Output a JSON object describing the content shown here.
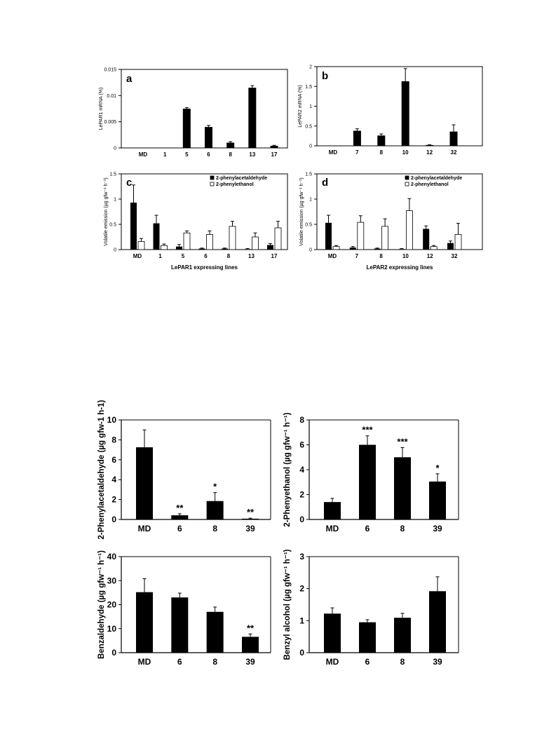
{
  "chart_data": [
    {
      "type": "bar",
      "panel_label": "a",
      "categories": [
        "MD",
        "1",
        "5",
        "6",
        "8",
        "13",
        "17"
      ],
      "series": [
        {
          "values": [
            0,
            0,
            0.0075,
            0.004,
            0.001,
            0.0115,
            0.0004
          ],
          "errors": [
            0,
            0,
            0.0002,
            0.0003,
            0.0002,
            0.0004,
            0.0001
          ],
          "color": "#000000"
        }
      ],
      "ylabel": "LePAR1 mRNA (%)",
      "ylim": [
        0,
        0.015
      ],
      "yticks": [
        "0",
        "0.005",
        "0.01",
        "0.015"
      ]
    },
    {
      "type": "bar",
      "panel_label": "b",
      "categories": [
        "MD",
        "7",
        "8",
        "10",
        "12",
        "32"
      ],
      "series": [
        {
          "values": [
            0,
            0.38,
            0.26,
            1.63,
            0.02,
            0.36
          ],
          "errors": [
            0,
            0.05,
            0.04,
            0.32,
            0.01,
            0.17
          ],
          "color": "#000000"
        }
      ],
      "ylabel": "LePAR2 mRNA (%)",
      "ylim": [
        0,
        2
      ],
      "yticks": [
        "0",
        "0.5",
        "1",
        "1.5",
        "2"
      ]
    },
    {
      "type": "bar",
      "panel_label": "c",
      "categories": [
        "MD",
        "1",
        "5",
        "6",
        "8",
        "13",
        "17"
      ],
      "series": [
        {
          "name": "2-phenylacetaldehyde",
          "values": [
            0.93,
            0.52,
            0.06,
            0.02,
            0.02,
            0.01,
            0.09
          ],
          "errors": [
            0.35,
            0.16,
            0.04,
            0.01,
            0.01,
            0.01,
            0.03
          ],
          "color": "#000000"
        },
        {
          "name": "2-phenylethanol",
          "values": [
            0.16,
            0.08,
            0.33,
            0.3,
            0.46,
            0.25,
            0.43
          ],
          "errors": [
            0.06,
            0.03,
            0.04,
            0.07,
            0.1,
            0.08,
            0.13
          ],
          "color": "#ffffff"
        }
      ],
      "xlabel": "LePAR1 expressing lines",
      "ylabel": "Volatile emission (µg gfw⁻¹ h⁻¹)",
      "ylim": [
        0,
        1.5
      ],
      "yticks": [
        "0",
        "0.5",
        "1",
        "1.5"
      ],
      "legend": "top-right"
    },
    {
      "type": "bar",
      "panel_label": "d",
      "categories": [
        "MD",
        "7",
        "8",
        "10",
        "12",
        "32"
      ],
      "series": [
        {
          "name": "2-phenylacetaldehyde",
          "values": [
            0.53,
            0.04,
            0.02,
            0.01,
            0.41,
            0.13
          ],
          "errors": [
            0.15,
            0.02,
            0.01,
            0.01,
            0.06,
            0.04
          ],
          "color": "#000000"
        },
        {
          "name": "2-phenylethanol",
          "values": [
            0.06,
            0.54,
            0.46,
            0.77,
            0.06,
            0.3
          ],
          "errors": [
            0.02,
            0.13,
            0.15,
            0.24,
            0.02,
            0.22
          ],
          "color": "#ffffff"
        }
      ],
      "xlabel": "LePAR2 expressing lines",
      "ylabel": "Volatile emission (µg gfw⁻¹ h⁻¹)",
      "ylim": [
        0,
        1.5
      ],
      "yticks": [
        "0",
        "0.5",
        "1",
        "1.5"
      ],
      "legend": "top-right"
    },
    {
      "type": "bar",
      "categories": [
        "MD",
        "6",
        "8",
        "39"
      ],
      "series": [
        {
          "values": [
            7.25,
            0.42,
            1.85,
            0.08
          ],
          "errors": [
            1.75,
            0.15,
            0.85,
            0.05
          ],
          "significance": [
            "",
            "**",
            "*",
            "**"
          ],
          "color": "#000000"
        }
      ],
      "ylabel": "2-Phenylacetaldehyde (µg gfw-1 h-1)",
      "ylim": [
        0,
        10
      ],
      "yticks": [
        "0",
        "2",
        "4",
        "6",
        "8",
        "10"
      ]
    },
    {
      "type": "bar",
      "categories": [
        "MD",
        "6",
        "8",
        "39"
      ],
      "series": [
        {
          "values": [
            1.4,
            6.0,
            5.0,
            3.05
          ],
          "errors": [
            0.3,
            0.72,
            0.78,
            0.62
          ],
          "significance": [
            "",
            "***",
            "***",
            "*"
          ],
          "color": "#000000"
        }
      ],
      "ylabel": "2-Phenyethanol (µg gfw⁻¹ h⁻¹)",
      "ylim": [
        0,
        8
      ],
      "yticks": [
        "0",
        "2",
        "4",
        "6",
        "8"
      ]
    },
    {
      "type": "bar",
      "categories": [
        "MD",
        "6",
        "8",
        "39"
      ],
      "series": [
        {
          "values": [
            25.2,
            23.0,
            17.0,
            6.6
          ],
          "errors": [
            5.6,
            1.8,
            2.0,
            1.2
          ],
          "significance": [
            "",
            "",
            "",
            "**"
          ],
          "color": "#000000"
        }
      ],
      "ylabel": "Benzaldehyde (µg gfw⁻¹ h⁻¹)",
      "ylim": [
        0,
        40
      ],
      "yticks": [
        "0",
        "10",
        "20",
        "30",
        "40"
      ]
    },
    {
      "type": "bar",
      "categories": [
        "MD",
        "6",
        "8",
        "39"
      ],
      "series": [
        {
          "values": [
            1.22,
            0.95,
            1.09,
            1.92
          ],
          "errors": [
            0.18,
            0.08,
            0.14,
            0.45
          ],
          "significance": [
            "",
            "",
            "",
            ""
          ],
          "color": "#000000"
        }
      ],
      "ylabel": "Benzyl alcohol (µg gfw⁻¹ h⁻¹)",
      "ylim": [
        0,
        3
      ],
      "yticks": [
        "0",
        "1",
        "2",
        "3"
      ]
    }
  ]
}
